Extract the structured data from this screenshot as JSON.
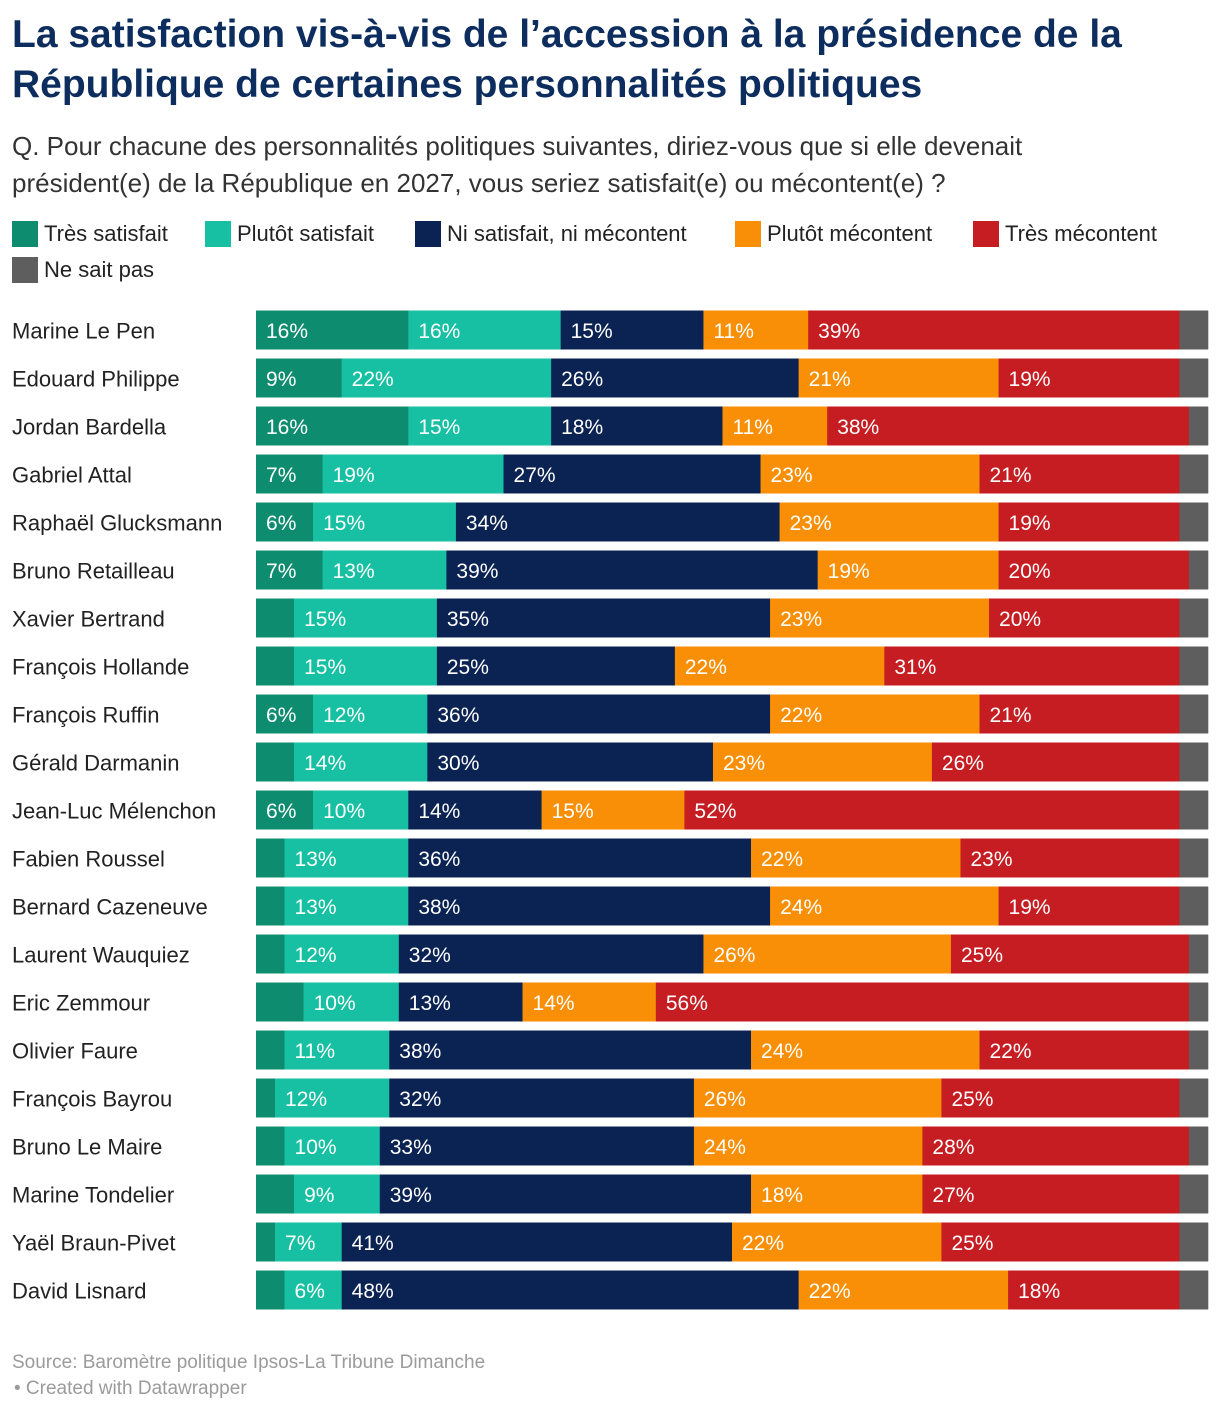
{
  "chart_data": {
    "type": "bar",
    "orientation": "horizontal",
    "stacked": true,
    "title": "La satisfaction vis-à-vis de l’accession à la présidence de la République de certaines personnalités politiques",
    "subtitle": "Q. Pour chacune des personnalités politiques suivantes, diriez-vous que si elle devenait président(e) de la République en 2027, vous seriez satisfait(e) ou mécontent(e) ?",
    "xlim": [
      0,
      100
    ],
    "value_suffix": "%",
    "grid": false,
    "legend_position": "top",
    "categories": [
      "Marine Le Pen",
      "Edouard Philippe",
      "Jordan Bardella",
      "Gabriel Attal",
      "Raphaël Glucksmann",
      "Bruno Retailleau",
      "Xavier Bertrand",
      "François Hollande",
      "François Ruffin",
      "Gérald Darmanin",
      "Jean-Luc Mélenchon",
      "Fabien Roussel",
      "Bernard Cazeneuve",
      "Laurent Wauquiez",
      "Eric Zemmour",
      "Olivier Faure",
      "François Bayrou",
      "Bruno Le Maire",
      "Marine Tondelier",
      "Yaël Braun-Pivet",
      "David Lisnard"
    ],
    "series": [
      {
        "name": "Très satisfait",
        "color": "#0e8c6f",
        "values": [
          16,
          9,
          16,
          7,
          6,
          7,
          4,
          4,
          6,
          4,
          6,
          3,
          3,
          3,
          5,
          3,
          2,
          3,
          4,
          2,
          3
        ]
      },
      {
        "name": "Plutôt satisfait",
        "color": "#17c0a2",
        "values": [
          16,
          22,
          15,
          19,
          15,
          13,
          15,
          15,
          12,
          14,
          10,
          13,
          13,
          12,
          10,
          11,
          12,
          10,
          9,
          7,
          6
        ]
      },
      {
        "name": "Ni satisfait, ni mécontent",
        "color": "#0b2352",
        "values": [
          15,
          26,
          18,
          27,
          34,
          39,
          35,
          25,
          36,
          30,
          14,
          36,
          38,
          32,
          13,
          38,
          32,
          33,
          39,
          41,
          48
        ]
      },
      {
        "name": "Plutôt mécontent",
        "color": "#f88f07",
        "values": [
          11,
          21,
          11,
          23,
          23,
          19,
          23,
          22,
          22,
          23,
          15,
          22,
          24,
          26,
          14,
          24,
          26,
          24,
          18,
          22,
          22
        ]
      },
      {
        "name": "Très mécontent",
        "color": "#c61d22",
        "values": [
          39,
          19,
          38,
          21,
          19,
          20,
          20,
          31,
          21,
          26,
          52,
          23,
          19,
          25,
          56,
          22,
          25,
          28,
          27,
          25,
          18
        ]
      },
      {
        "name": "Ne sait pas",
        "color": "#5e5e5e",
        "values": [
          3,
          3,
          2,
          3,
          3,
          2,
          3,
          3,
          3,
          3,
          3,
          3,
          3,
          2,
          2,
          2,
          3,
          2,
          3,
          3,
          3
        ]
      }
    ]
  },
  "footer": {
    "source": "Source: Baromètre politique Ipsos-La Tribune Dimanche",
    "credit": "• Created with Datawrapper"
  }
}
